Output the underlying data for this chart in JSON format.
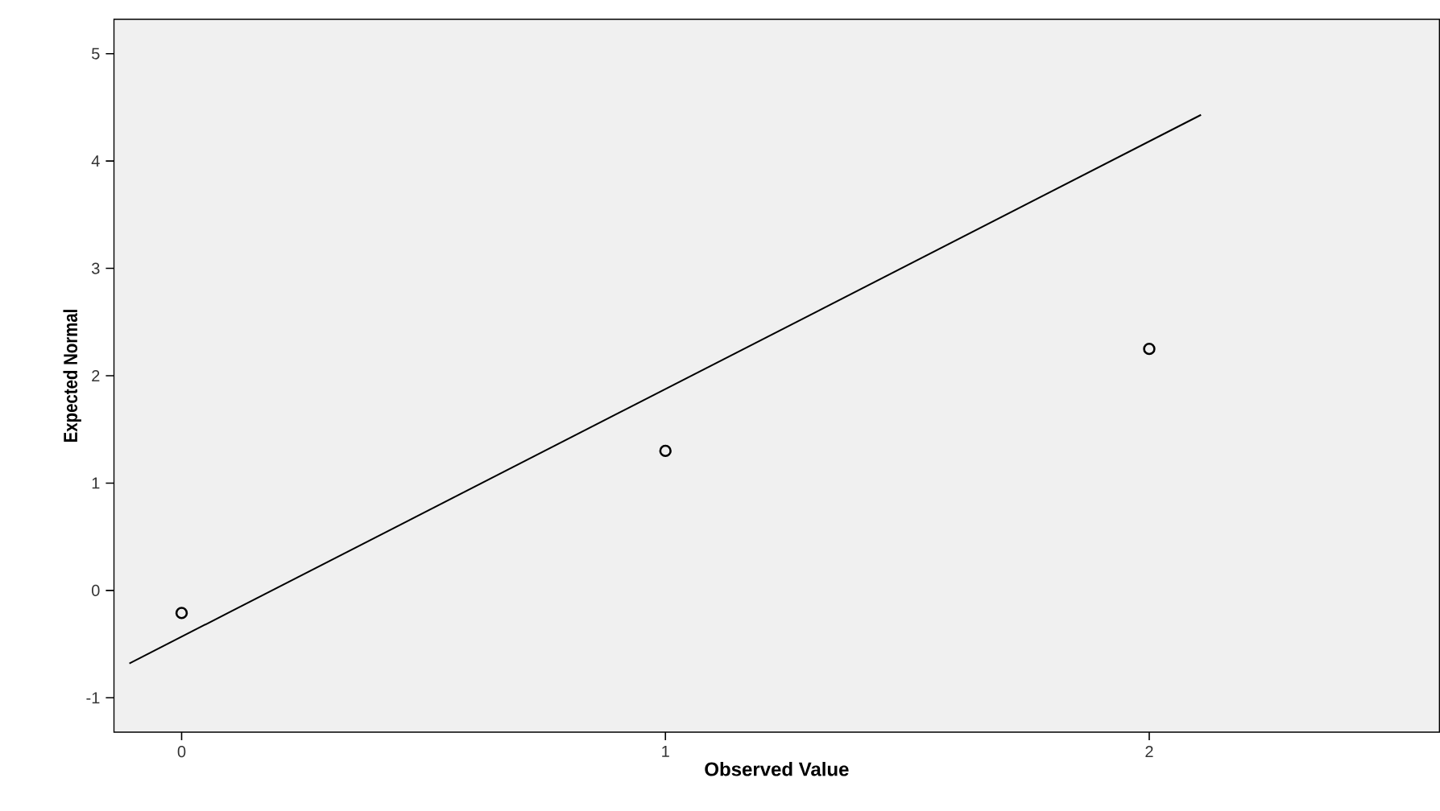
{
  "chart_data": {
    "type": "scatter",
    "xlabel": "Observed Value",
    "ylabel": "Expected Normal",
    "xlim": [
      -0.14,
      2.6
    ],
    "ylim": [
      -1.32,
      5.32
    ],
    "xticks": [
      0,
      1,
      2
    ],
    "yticks": [
      -1,
      0,
      1,
      2,
      3,
      4,
      5
    ],
    "grid": false,
    "marker": "circle",
    "series": [
      {
        "color": "#000000",
        "x": [
          0,
          1,
          2
        ],
        "values": [
          -0.21,
          1.3,
          2.25
        ]
      },
      {
        "type": "line",
        "color": "#000000",
        "line_style": "solid",
        "marker": "none",
        "x": [
          -0.108,
          2.107
        ],
        "values": [
          -0.68,
          4.43
        ]
      }
    ]
  }
}
